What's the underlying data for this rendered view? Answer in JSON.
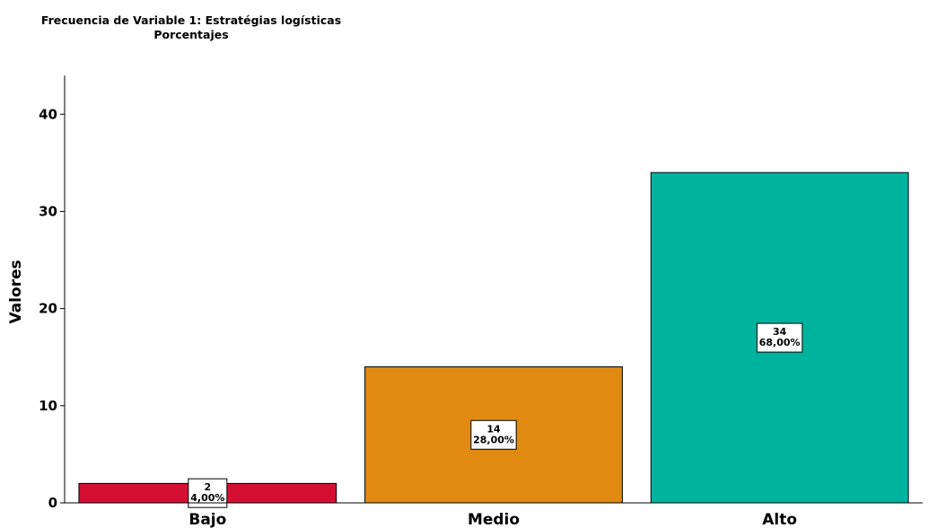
{
  "chart_data": {
    "type": "bar",
    "title": "Frecuencia de Variable 1: Estratégias logísticas",
    "subtitle": "Porcentajes",
    "xlabel": "",
    "ylabel": "Valores",
    "ylim": [
      0,
      44
    ],
    "yticks": [
      0,
      10,
      20,
      30,
      40
    ],
    "grid": false,
    "categories": [
      "Bajo",
      "Medio",
      "Alto"
    ],
    "values": [
      2,
      14,
      34
    ],
    "percent_labels": [
      "4,00%",
      "28,00%",
      "68,00%"
    ],
    "colors": [
      "#d50f34",
      "#e08a12",
      "#00b39e"
    ]
  }
}
